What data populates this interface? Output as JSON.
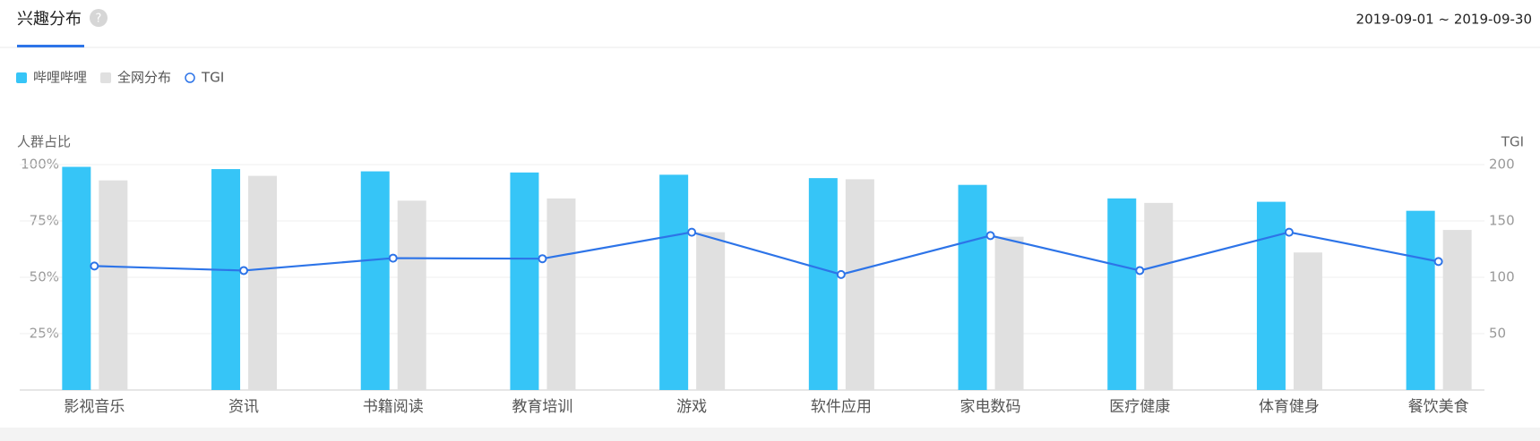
{
  "header": {
    "title": "兴趣分布",
    "date_range": "2019-09-01 ~ 2019-09-30"
  },
  "chart_data": {
    "type": "bar-line",
    "y_label": "人群占比",
    "y2_label": "TGI",
    "categories": [
      "影视音乐",
      "资讯",
      "书籍阅读",
      "教育培训",
      "游戏",
      "软件应用",
      "家电数码",
      "医疗健康",
      "体育健身",
      "餐饮美食"
    ],
    "series": [
      {
        "name": "哔哩哔哩",
        "type": "bar",
        "color": "#36c5f7",
        "values": [
          99,
          98,
          97,
          96.5,
          95.5,
          94,
          91,
          85,
          83.5,
          79.5
        ]
      },
      {
        "name": "全网分布",
        "type": "bar",
        "color": "#e0e0e0",
        "values": [
          93,
          95,
          84,
          85,
          70,
          93.5,
          68,
          83,
          61,
          71
        ]
      },
      {
        "name": "TGI",
        "type": "line",
        "axis": "y2",
        "color": "#2d74e8",
        "values": [
          110,
          106,
          117,
          116.5,
          140,
          102.5,
          137,
          106,
          140,
          114
        ]
      }
    ],
    "ylim": [
      0,
      100
    ],
    "yticks": [
      {
        "value": 25,
        "label": "25%"
      },
      {
        "value": 50,
        "label": "50%"
      },
      {
        "value": 75,
        "label": "75%"
      },
      {
        "value": 100,
        "label": "100%"
      }
    ],
    "y2lim": [
      0,
      200
    ],
    "y2ticks": [
      50,
      100,
      150,
      200
    ],
    "grid": true
  }
}
